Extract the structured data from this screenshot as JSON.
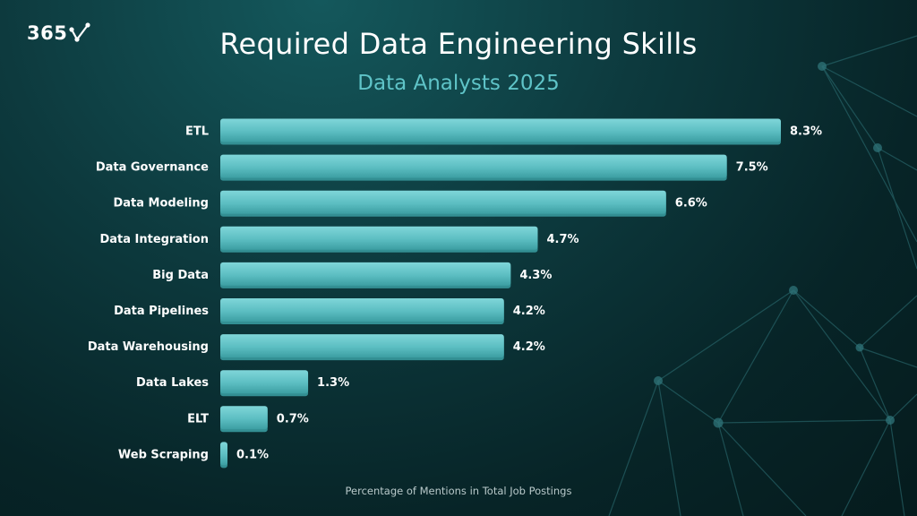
{
  "brand": {
    "logo_text": "365"
  },
  "colors": {
    "bar": "#5cbec2",
    "bar_highlight": "#7fd6d9",
    "bar_shadow": "#338f93",
    "subtitle": "#5fc4c8"
  },
  "chart_data": {
    "type": "bar",
    "orientation": "horizontal",
    "title": "Required Data Engineering Skills",
    "subtitle": "Data Analysts 2025",
    "xlabel": "Percentage of Mentions in Total Job Postings",
    "ylabel": "",
    "grid": false,
    "legend": "none",
    "xlim": [
      0,
      8.3
    ],
    "categories": [
      "ETL",
      "Data Governance",
      "Data Modeling",
      "Data Integration",
      "Big Data",
      "Data Pipelines",
      "Data Warehousing",
      "Data Lakes",
      "ELT",
      "Web Scraping"
    ],
    "values": [
      8.3,
      7.5,
      6.6,
      4.7,
      4.3,
      4.2,
      4.2,
      1.3,
      0.7,
      0.1
    ],
    "value_labels": [
      "8.3%",
      "7.5%",
      "6.6%",
      "4.7%",
      "4.3%",
      "4.2%",
      "4.2%",
      "1.3%",
      "0.7%",
      "0.1%"
    ]
  }
}
